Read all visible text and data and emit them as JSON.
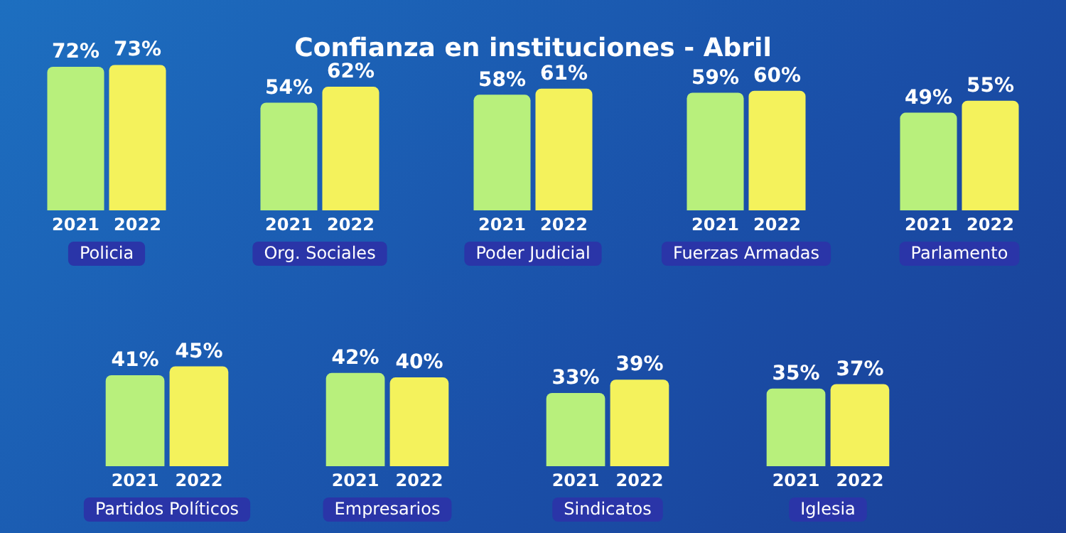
{
  "chart_data": [
    {
      "type": "bar",
      "title": "Confianza en instituciones - Abril",
      "categories": [
        "Policia",
        "Org. Sociales",
        "Poder Judicial",
        "Fuerzas Armadas",
        "Parlamento"
      ],
      "series": [
        {
          "name": "2021",
          "color": "#b8f07c",
          "values": [
            72,
            54,
            58,
            59,
            49
          ],
          "value_labels": [
            "72%",
            "54%",
            "58%",
            "59%",
            "49%"
          ]
        },
        {
          "name": "2022",
          "color": "#f4f25c",
          "values": [
            73,
            62,
            61,
            60,
            55
          ],
          "value_labels": [
            "73%",
            "62%",
            "61%",
            "60%",
            "55%"
          ]
        }
      ]
    },
    {
      "type": "bar",
      "categories": [
        "Partidos Políticos",
        "Empresarios",
        "Sindicatos",
        "Iglesia"
      ],
      "series": [
        {
          "name": "2021",
          "color": "#b8f07c",
          "values": [
            41,
            42,
            33,
            35
          ],
          "value_labels": [
            "41%",
            "42%",
            "33%",
            "35%"
          ]
        },
        {
          "name": "2022",
          "color": "#f4f25c",
          "values": [
            45,
            40,
            39,
            37
          ],
          "value_labels": [
            "45%",
            "40%",
            "39%",
            "37%"
          ]
        }
      ]
    }
  ]
}
